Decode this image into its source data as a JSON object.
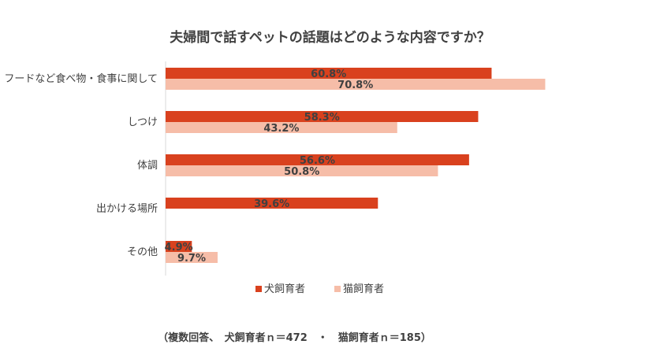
{
  "chart_data": {
    "type": "bar",
    "orientation": "horizontal",
    "title": "夫婦間で話すペットの話題はどのような内容ですか？",
    "categories": [
      "フードなど食べ物・食事に関して",
      "しつけ",
      "体調",
      "出かける場所",
      "その他"
    ],
    "series": [
      {
        "name": "犬飼育者",
        "color": "#D9411E",
        "values": [
          60.8,
          58.3,
          56.6,
          39.6,
          4.9
        ],
        "labels": [
          "60.8%",
          "58.3%",
          "56.6%",
          "39.6%",
          "4.9%"
        ]
      },
      {
        "name": "猫飼育者",
        "color": "#F6BDA8",
        "values": [
          70.8,
          43.2,
          50.8,
          null,
          9.7
        ],
        "labels": [
          "70.8%",
          "43.2%",
          "50.8%",
          "",
          "9.7%"
        ]
      }
    ],
    "xlim": [
      0,
      75
    ],
    "legend_position": "bottom",
    "grid": false,
    "note": "（複数回答、　犬飼育者ｎ＝472　・　猫飼育者ｎ＝185）"
  }
}
